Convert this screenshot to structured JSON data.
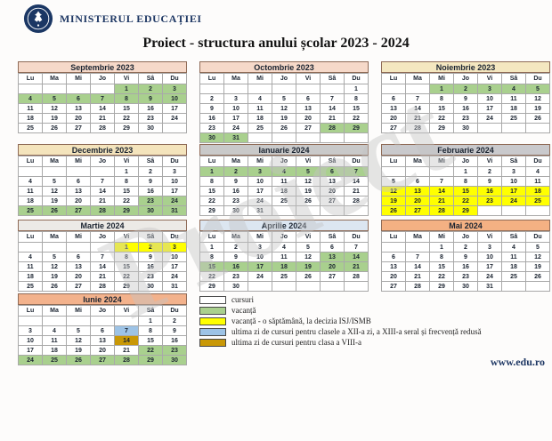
{
  "header": {
    "ministry": "MINISTERUL EDUCAȚIEI",
    "title": "Proiect - structura anului școlar 2023 - 2024"
  },
  "watermark": "Proiect",
  "day_headers": [
    "Lu",
    "Ma",
    "Mi",
    "Jo",
    "Vi",
    "Sâ",
    "Du"
  ],
  "colors": {
    "cursuri": "#FFFFFF",
    "vacanta": "#A9D08E",
    "vacanta_isj": "#FFFF00",
    "ultima_zi_xii": "#9DC3E6",
    "ultima_zi_viii": "#C99806"
  },
  "cell_color_codes": {
    "w": "cursuri",
    "g": "vacanta",
    "y": "vacanta_isj",
    "b": "ultima_zi_xii",
    "o": "ultima_zi_viii"
  },
  "months": [
    {
      "name": "Septembrie 2023",
      "header_color": "#F6D9C9",
      "weeks": [
        [
          "",
          "",
          "",
          "",
          "1g",
          "2g",
          "3g"
        ],
        [
          "4g",
          "5g",
          "6g",
          "7g",
          "8g",
          "9g",
          "10g"
        ],
        [
          "11w",
          "12w",
          "13w",
          "14w",
          "15w",
          "16w",
          "17w"
        ],
        [
          "18w",
          "19w",
          "20w",
          "21w",
          "22w",
          "23w",
          "24w"
        ],
        [
          "25w",
          "26w",
          "27w",
          "28w",
          "29w",
          "30w",
          ""
        ]
      ]
    },
    {
      "name": "Octombrie 2023",
      "header_color": "#F6D9C9",
      "weeks": [
        [
          "",
          "",
          "",
          "",
          "",
          "",
          "1w"
        ],
        [
          "2w",
          "3w",
          "4w",
          "5w",
          "6w",
          "7w",
          "8w"
        ],
        [
          "9w",
          "10w",
          "11w",
          "12w",
          "13w",
          "14w",
          "15w"
        ],
        [
          "16w",
          "17w",
          "18w",
          "19w",
          "20w",
          "21w",
          "22w"
        ],
        [
          "23w",
          "24w",
          "25w",
          "26w",
          "27w",
          "28g",
          "29g"
        ],
        [
          "30g",
          "31g",
          "",
          "",
          "",
          "",
          ""
        ]
      ]
    },
    {
      "name": "Noiembrie 2023",
      "header_color": "#F4E7C0",
      "weeks": [
        [
          "",
          "",
          "1g",
          "2g",
          "3g",
          "4g",
          "5g"
        ],
        [
          "6w",
          "7w",
          "8w",
          "9w",
          "10w",
          "11w",
          "12w"
        ],
        [
          "13w",
          "14w",
          "15w",
          "16w",
          "17w",
          "18w",
          "19w"
        ],
        [
          "20w",
          "21w",
          "22w",
          "23w",
          "24w",
          "25w",
          "26w"
        ],
        [
          "27w",
          "28w",
          "29w",
          "30w",
          "",
          "",
          ""
        ]
      ]
    },
    {
      "name": "Decembrie 2023",
      "header_color": "#F4E4BC",
      "weeks": [
        [
          "",
          "",
          "",
          "",
          "1w",
          "2w",
          "3w"
        ],
        [
          "4w",
          "5w",
          "6w",
          "7w",
          "8w",
          "9w",
          "10w"
        ],
        [
          "11w",
          "12w",
          "13w",
          "14w",
          "15w",
          "16w",
          "17w"
        ],
        [
          "18w",
          "19w",
          "20w",
          "21w",
          "22w",
          "23g",
          "24g"
        ],
        [
          "25g",
          "26g",
          "27g",
          "28g",
          "29g",
          "30g",
          "31g"
        ]
      ]
    },
    {
      "name": "Ianuarie 2024",
      "header_color": "#C9C9C9",
      "weeks": [
        [
          "1g",
          "2g",
          "3g",
          "4g",
          "5g",
          "6g",
          "7g"
        ],
        [
          "8w",
          "9w",
          "10w",
          "11w",
          "12w",
          "13w",
          "14w"
        ],
        [
          "15w",
          "16w",
          "17w",
          "18w",
          "19w",
          "20w",
          "21w"
        ],
        [
          "22w",
          "23w",
          "24w",
          "25w",
          "26w",
          "27w",
          "28w"
        ],
        [
          "29w",
          "30w",
          "31w",
          "",
          "",
          "",
          ""
        ]
      ]
    },
    {
      "name": "Februarie 2024",
      "header_color": "#C9C9CC",
      "weeks": [
        [
          "",
          "",
          "",
          "1w",
          "2w",
          "3w",
          "4w"
        ],
        [
          "5w",
          "6w",
          "7w",
          "8w",
          "9w",
          "10w",
          "11w"
        ],
        [
          "12y",
          "13y",
          "14y",
          "15y",
          "16y",
          "17y",
          "18y"
        ],
        [
          "19y",
          "20y",
          "21y",
          "22y",
          "23y",
          "24y",
          "25y"
        ],
        [
          "26y",
          "27y",
          "28y",
          "29y",
          "",
          "",
          ""
        ]
      ]
    },
    {
      "name": "Martie 2024",
      "header_color": "#ECEAE6",
      "weeks": [
        [
          "",
          "",
          "",
          "",
          "1y",
          "2y",
          "3y"
        ],
        [
          "4w",
          "5w",
          "6w",
          "7w",
          "8w",
          "9w",
          "10w"
        ],
        [
          "11w",
          "12w",
          "13w",
          "14w",
          "15w",
          "16w",
          "17w"
        ],
        [
          "18w",
          "19w",
          "20w",
          "21w",
          "22w",
          "23w",
          "24w"
        ],
        [
          "25w",
          "26w",
          "27w",
          "28w",
          "29w",
          "30w",
          "31w"
        ]
      ]
    },
    {
      "name": "Aprilie 2024",
      "header_color": "#DCE6F1",
      "weeks": [
        [
          "1w",
          "2w",
          "3w",
          "4w",
          "5w",
          "6w",
          "7w"
        ],
        [
          "8w",
          "9w",
          "10w",
          "11w",
          "12w",
          "13g",
          "14g"
        ],
        [
          "15g",
          "16g",
          "17g",
          "18g",
          "19g",
          "20g",
          "21g"
        ],
        [
          "22w",
          "23w",
          "24w",
          "25w",
          "26w",
          "27w",
          "28w"
        ],
        [
          "29w",
          "30w",
          "",
          "",
          "",
          "",
          ""
        ]
      ]
    },
    {
      "name": "Mai 2024",
      "header_color": "#F4B183",
      "weeks": [
        [
          "",
          "",
          "1w",
          "2w",
          "3w",
          "4w",
          "5w"
        ],
        [
          "6w",
          "7w",
          "8w",
          "9w",
          "10w",
          "11w",
          "12w"
        ],
        [
          "13w",
          "14w",
          "15w",
          "16w",
          "17w",
          "18w",
          "19w"
        ],
        [
          "20w",
          "21w",
          "22w",
          "23w",
          "24w",
          "25w",
          "26w"
        ],
        [
          "27w",
          "28w",
          "29w",
          "30w",
          "31w",
          "",
          ""
        ]
      ]
    },
    {
      "name": "Iunie 2024",
      "header_color": "#F3B28C",
      "weeks": [
        [
          "",
          "",
          "",
          "",
          "",
          "1w",
          "2w"
        ],
        [
          "3w",
          "4w",
          "5w",
          "6w",
          "7b",
          "8w",
          "9w"
        ],
        [
          "10w",
          "11w",
          "12w",
          "13w",
          "14o",
          "15w",
          "16w"
        ],
        [
          "17w",
          "18w",
          "19w",
          "20w",
          "21w",
          "22g",
          "23g"
        ],
        [
          "24g",
          "25g",
          "26g",
          "27g",
          "28g",
          "29g",
          "30g"
        ]
      ]
    }
  ],
  "legend": [
    {
      "key": "cursuri",
      "label": "cursuri"
    },
    {
      "key": "vacanta",
      "label": "vacanță"
    },
    {
      "key": "vacanta_isj",
      "label": "vacanță - o săptămână, la decizia ISJ/ISMB"
    },
    {
      "key": "ultima_zi_xii",
      "label": "ultima zi de cursuri pentru clasele a XII-a zi, a XIII-a seral și frecvență redusă"
    },
    {
      "key": "ultima_zi_viii",
      "label": "ultima zi de cursuri pentru clasa a VIII-a"
    }
  ],
  "footer": {
    "website": "www.edu.ro"
  }
}
